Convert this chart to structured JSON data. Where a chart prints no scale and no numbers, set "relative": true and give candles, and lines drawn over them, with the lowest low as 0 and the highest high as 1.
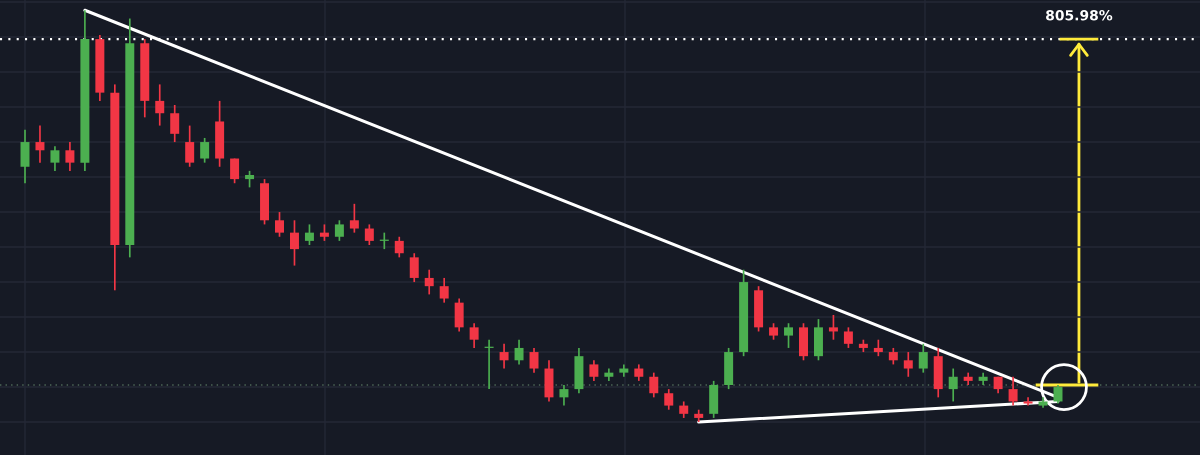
{
  "chart_data": {
    "type": "candlestick",
    "relative": true,
    "grid": true,
    "categories": [
      null,
      null,
      null,
      null,
      null,
      null,
      null,
      null,
      null,
      null,
      null,
      null,
      null,
      null,
      null,
      null,
      null,
      null,
      null,
      null,
      null,
      null,
      null,
      null,
      null,
      null,
      null,
      null,
      null,
      null,
      null,
      null,
      null,
      null,
      null,
      null,
      null,
      null,
      null,
      null,
      null,
      null,
      null,
      null,
      null,
      null,
      null,
      null,
      null,
      null,
      null,
      null,
      null,
      null,
      null,
      null,
      null,
      null,
      null,
      null,
      null,
      null,
      null,
      null,
      null,
      null,
      null,
      null,
      null,
      null
    ],
    "ohlc": [
      [
        0.62,
        0.71,
        0.58,
        0.68
      ],
      [
        0.68,
        0.72,
        0.63,
        0.66
      ],
      [
        0.63,
        0.67,
        0.61,
        0.66
      ],
      [
        0.66,
        0.68,
        0.61,
        0.63
      ],
      [
        0.63,
        1.0,
        0.61,
        0.93
      ],
      [
        0.93,
        0.94,
        0.78,
        0.8
      ],
      [
        0.8,
        0.82,
        0.32,
        0.43
      ],
      [
        0.43,
        0.98,
        0.4,
        0.92
      ],
      [
        0.92,
        0.93,
        0.74,
        0.78
      ],
      [
        0.78,
        0.82,
        0.72,
        0.75
      ],
      [
        0.75,
        0.77,
        0.68,
        0.7
      ],
      [
        0.68,
        0.72,
        0.62,
        0.63
      ],
      [
        0.64,
        0.69,
        0.63,
        0.68
      ],
      [
        0.73,
        0.78,
        0.62,
        0.64
      ],
      [
        0.64,
        0.64,
        0.58,
        0.59
      ],
      [
        0.59,
        0.61,
        0.57,
        0.6
      ],
      [
        0.58,
        0.59,
        0.48,
        0.49
      ],
      [
        0.49,
        0.51,
        0.45,
        0.46
      ],
      [
        0.46,
        0.49,
        0.38,
        0.42
      ],
      [
        0.44,
        0.48,
        0.43,
        0.46
      ],
      [
        0.46,
        0.48,
        0.44,
        0.45
      ],
      [
        0.45,
        0.49,
        0.44,
        0.48
      ],
      [
        0.49,
        0.53,
        0.46,
        0.47
      ],
      [
        0.47,
        0.48,
        0.43,
        0.44
      ],
      [
        0.44,
        0.46,
        0.42,
        0.44
      ],
      [
        0.44,
        0.45,
        0.4,
        0.41
      ],
      [
        0.4,
        0.41,
        0.34,
        0.35
      ],
      [
        0.35,
        0.37,
        0.31,
        0.33
      ],
      [
        0.33,
        0.35,
        0.29,
        0.3
      ],
      [
        0.29,
        0.3,
        0.22,
        0.23
      ],
      [
        0.23,
        0.24,
        0.18,
        0.2
      ],
      [
        0.18,
        0.2,
        0.08,
        0.18
      ],
      [
        0.17,
        0.19,
        0.13,
        0.15
      ],
      [
        0.15,
        0.2,
        0.14,
        0.18
      ],
      [
        0.17,
        0.18,
        0.12,
        0.13
      ],
      [
        0.13,
        0.15,
        0.05,
        0.06
      ],
      [
        0.06,
        0.09,
        0.04,
        0.08
      ],
      [
        0.08,
        0.18,
        0.07,
        0.16
      ],
      [
        0.14,
        0.15,
        0.1,
        0.11
      ],
      [
        0.11,
        0.13,
        0.1,
        0.12
      ],
      [
        0.12,
        0.14,
        0.11,
        0.13
      ],
      [
        0.13,
        0.14,
        0.1,
        0.11
      ],
      [
        0.11,
        0.12,
        0.06,
        0.07
      ],
      [
        0.07,
        0.08,
        0.03,
        0.04
      ],
      [
        0.04,
        0.05,
        0.01,
        0.02
      ],
      [
        0.02,
        0.03,
        0.0,
        0.01
      ],
      [
        0.02,
        0.1,
        0.01,
        0.09
      ],
      [
        0.09,
        0.18,
        0.08,
        0.17
      ],
      [
        0.17,
        0.37,
        0.16,
        0.34
      ],
      [
        0.32,
        0.33,
        0.22,
        0.23
      ],
      [
        0.23,
        0.24,
        0.2,
        0.21
      ],
      [
        0.21,
        0.24,
        0.18,
        0.23
      ],
      [
        0.23,
        0.24,
        0.15,
        0.16
      ],
      [
        0.16,
        0.25,
        0.15,
        0.23
      ],
      [
        0.23,
        0.26,
        0.2,
        0.22
      ],
      [
        0.22,
        0.23,
        0.18,
        0.19
      ],
      [
        0.19,
        0.2,
        0.17,
        0.18
      ],
      [
        0.18,
        0.2,
        0.16,
        0.17
      ],
      [
        0.17,
        0.18,
        0.14,
        0.15
      ],
      [
        0.15,
        0.17,
        0.11,
        0.13
      ],
      [
        0.13,
        0.19,
        0.12,
        0.17
      ],
      [
        0.16,
        0.18,
        0.06,
        0.08
      ],
      [
        0.08,
        0.13,
        0.05,
        0.11
      ],
      [
        0.11,
        0.12,
        0.09,
        0.1
      ],
      [
        0.1,
        0.12,
        0.09,
        0.11
      ],
      [
        0.11,
        0.11,
        0.07,
        0.08
      ],
      [
        0.08,
        0.11,
        0.04,
        0.05
      ],
      [
        0.05,
        0.06,
        0.04,
        0.045
      ],
      [
        0.04,
        0.06,
        0.035,
        0.05
      ],
      [
        0.05,
        0.09,
        0.045,
        0.085
      ]
    ],
    "series": [
      {
        "type": "line",
        "color": "#ffffff",
        "values": [
          null,
          null,
          null,
          null,
          1.0,
          null,
          null,
          null,
          null,
          null,
          null,
          null,
          null,
          null,
          null,
          null,
          null,
          null,
          null,
          null,
          null,
          null,
          null,
          null,
          null,
          null,
          null,
          null,
          null,
          null,
          null,
          null,
          null,
          null,
          null,
          null,
          null,
          null,
          null,
          null,
          null,
          null,
          null,
          null,
          null,
          null,
          null,
          null,
          null,
          null,
          null,
          null,
          null,
          null,
          null,
          null,
          null,
          null,
          null,
          null,
          null,
          null,
          null,
          null,
          null,
          null,
          null,
          null,
          null,
          0.06
        ]
      },
      {
        "type": "line",
        "color": "#ffffff",
        "values": [
          null,
          null,
          null,
          null,
          null,
          null,
          null,
          null,
          null,
          null,
          null,
          null,
          null,
          null,
          null,
          null,
          null,
          null,
          null,
          null,
          null,
          null,
          null,
          null,
          null,
          null,
          null,
          null,
          null,
          null,
          null,
          null,
          null,
          null,
          null,
          null,
          null,
          null,
          null,
          null,
          null,
          null,
          null,
          null,
          null,
          0.0,
          null,
          null,
          null,
          null,
          null,
          null,
          null,
          null,
          null,
          null,
          null,
          null,
          null,
          null,
          null,
          null,
          null,
          null,
          null,
          null,
          null,
          null,
          null,
          0.05
        ]
      }
    ],
    "ref_lines": [
      {
        "axis": "y",
        "value": 0.93,
        "color": "#ffffff",
        "line_style": "dotted"
      },
      {
        "axis": "y",
        "value": 0.09,
        "color": "#4f6a58",
        "line_style": "dotted"
      }
    ],
    "annotations": [
      {
        "text": "805.98%",
        "y": 0.93
      }
    ]
  }
}
